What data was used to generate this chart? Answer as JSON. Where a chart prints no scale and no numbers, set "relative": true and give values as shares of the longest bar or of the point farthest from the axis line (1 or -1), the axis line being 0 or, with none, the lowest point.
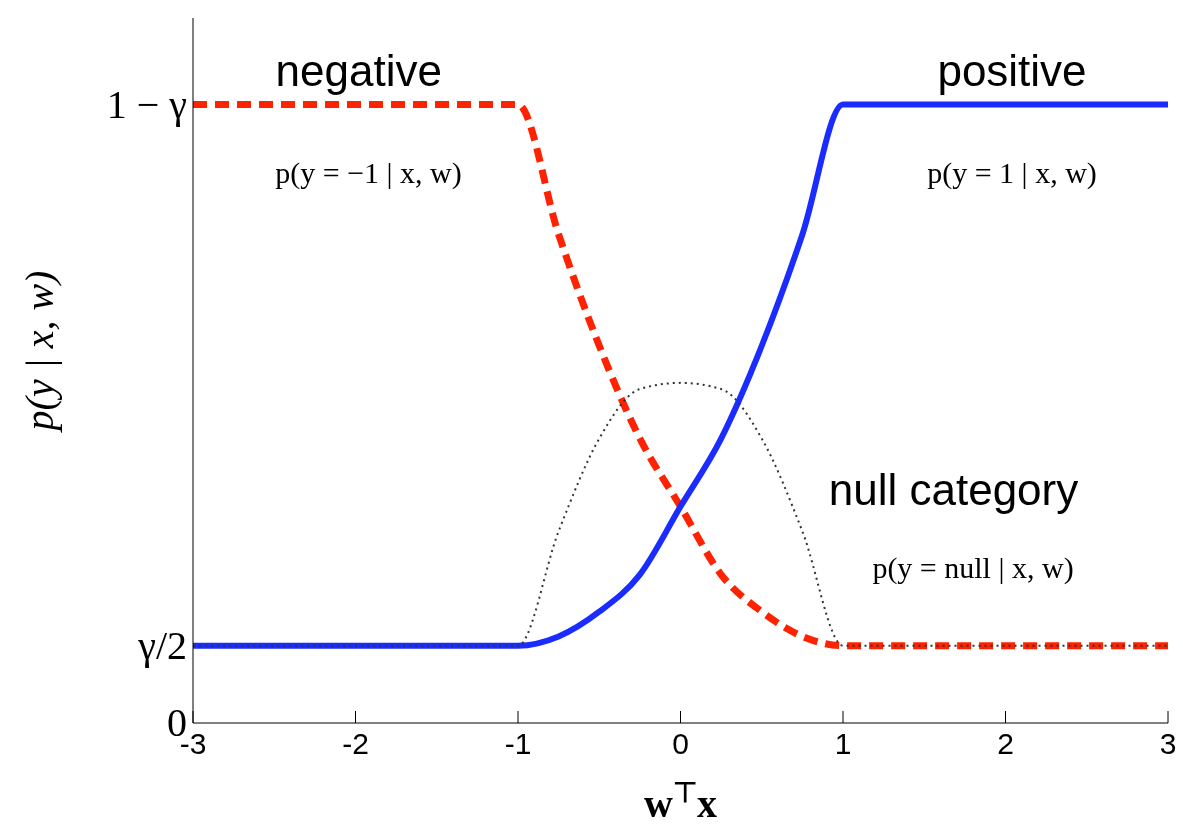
{
  "chart_data": {
    "type": "line",
    "xlabel": "w$^{⊤}$x",
    "ylabel": "p(y | x, w)",
    "xlim": [
      -3,
      3
    ],
    "xticks": [
      -3,
      -2,
      -1,
      0,
      1,
      2,
      3
    ],
    "relative": true,
    "grid": false,
    "legend": false,
    "marker": "none",
    "series": [
      {
        "color": "#ff2200",
        "line_style": "dashed",
        "x": [
          -3,
          -1,
          -0.75,
          -0.5,
          -0.25,
          0,
          0.25,
          0.5,
          0.75,
          1,
          3
        ],
        "values": [
          1,
          1,
          0.79,
          0.61,
          0.46,
          0.35,
          0.24,
          0.18,
          0.14,
          0.125,
          0.125
        ]
      },
      {
        "color": "#1a2cff",
        "line_style": "solid",
        "x": [
          -3,
          -1,
          -0.75,
          -0.5,
          -0.25,
          0,
          0.25,
          0.5,
          0.75,
          1,
          3
        ],
        "values": [
          0.125,
          0.125,
          0.14,
          0.18,
          0.24,
          0.35,
          0.46,
          0.61,
          0.79,
          1,
          1
        ]
      },
      {
        "color": "#333333",
        "line_style": "dotted",
        "x": [
          -3,
          -1,
          -0.75,
          -0.5,
          -0.25,
          0,
          0.25,
          0.5,
          0.75,
          1,
          3
        ],
        "values": [
          0.125,
          0.125,
          0.31,
          0.46,
          0.54,
          0.55,
          0.54,
          0.46,
          0.31,
          0.125,
          0.125
        ]
      }
    ],
    "annotations": [
      "negative",
      "p(y = −1 | x, w)",
      "positive",
      "p(y = 1 | x, w)",
      "null category",
      "p(y = null | x, w)",
      "1 − γ",
      "γ/2",
      "0"
    ]
  }
}
